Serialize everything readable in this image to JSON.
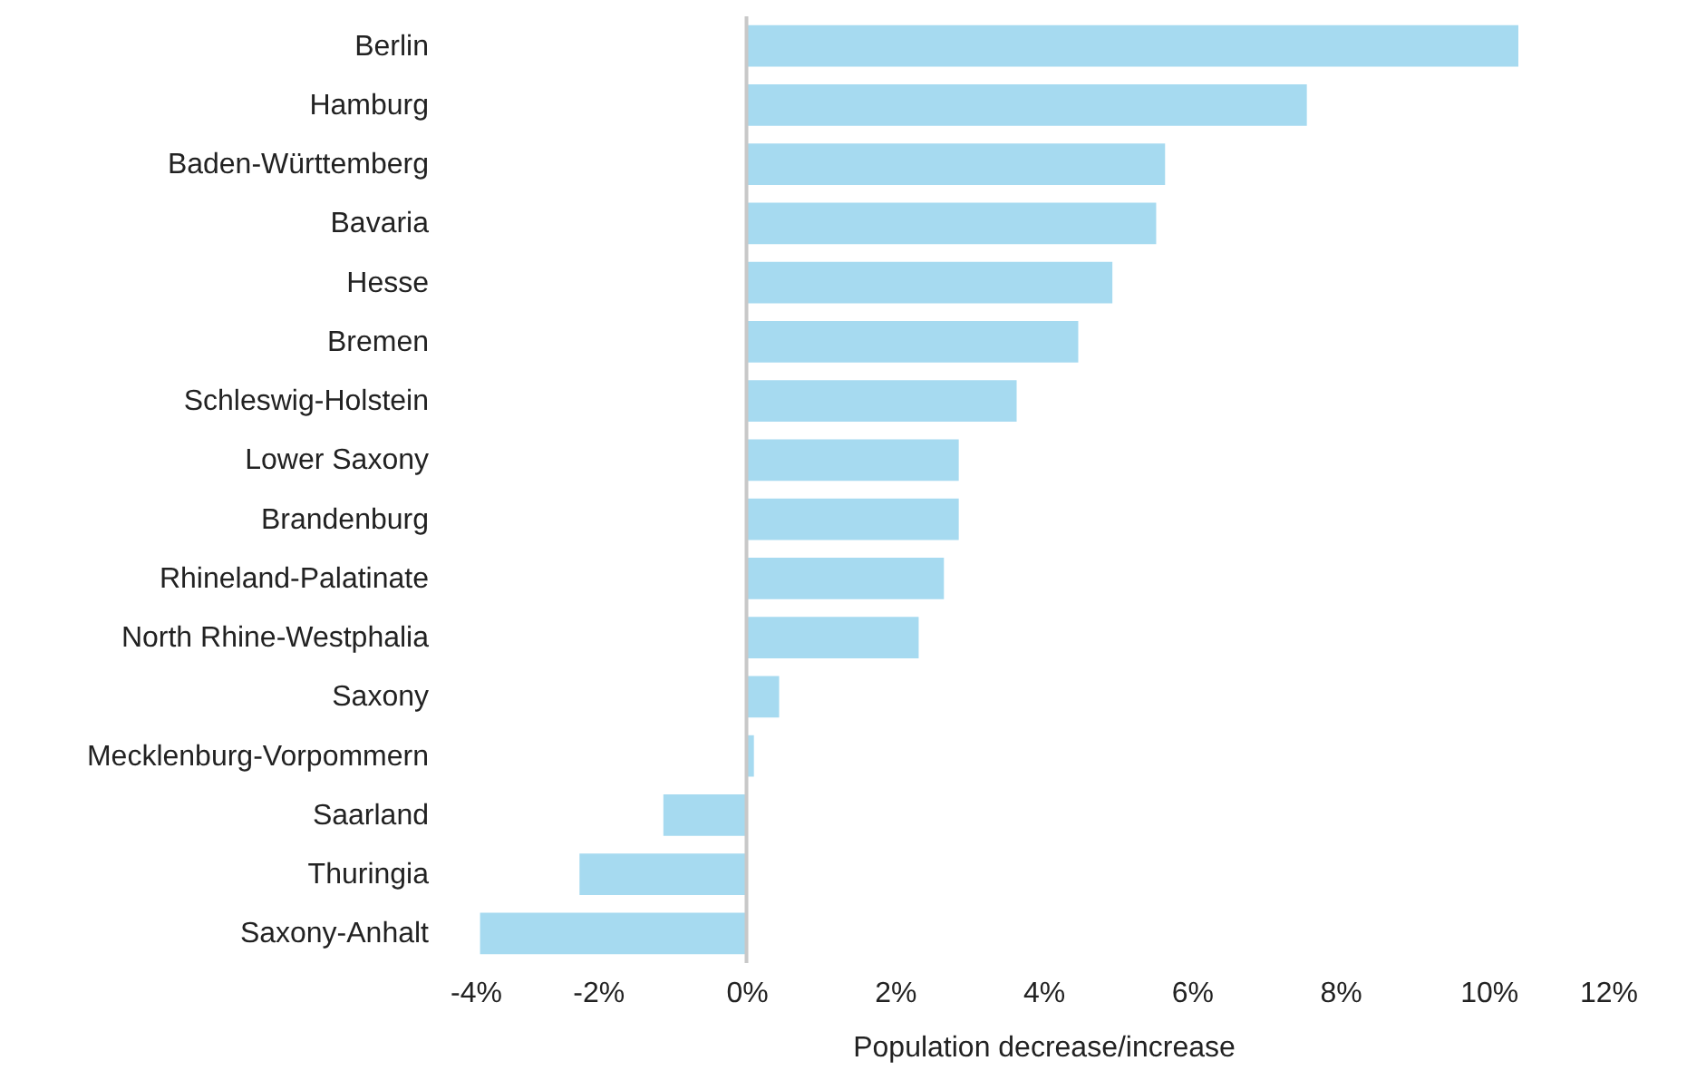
{
  "chart_data": {
    "type": "bar",
    "orientation": "horizontal",
    "xlabel": "Population decrease/increase",
    "categories": [
      "Berlin",
      "Hamburg",
      "Baden-Württemberg",
      "Bavaria",
      "Hesse",
      "Bremen",
      "Schleswig-Holstein",
      "Lower Saxony",
      "Brandenburg",
      "Rhineland-Palatinate",
      "North Rhine-Westphalia",
      "Saxony",
      "Mecklenburg-Vorpommern",
      "Saarland",
      "Thuringia",
      "Saxony-Anhalt"
    ],
    "values": [
      10.4,
      7.55,
      5.64,
      5.52,
      4.93,
      4.47,
      3.64,
      2.86,
      2.86,
      2.66,
      2.32,
      0.44,
      0.1,
      -1.12,
      -2.25,
      -3.59
    ],
    "color": "#a6daf0",
    "xlim": [
      -4,
      12
    ],
    "xticks": [
      {
        "value": -4,
        "label": "-4%"
      },
      {
        "value": -2,
        "label": "-2%"
      },
      {
        "value": 0,
        "label": "0%"
      },
      {
        "value": 2,
        "label": "2%"
      },
      {
        "value": 4,
        "label": "4%"
      },
      {
        "value": 6,
        "label": "6%"
      },
      {
        "value": 8,
        "label": "8%"
      },
      {
        "value": 10,
        "label": "10%"
      },
      {
        "value": 12,
        "label": "12%"
      }
    ],
    "ref_lines": [
      {
        "axis": "x",
        "value": 0,
        "color": "#c8c8c8"
      }
    ],
    "grid": false
  }
}
